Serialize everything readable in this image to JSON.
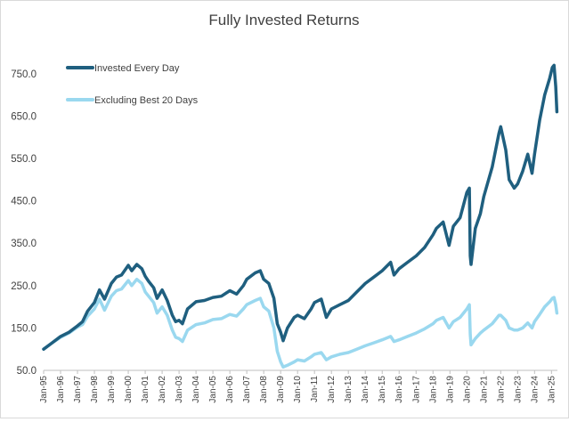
{
  "chart_data": {
    "type": "line",
    "title": "Fully Invested Returns",
    "xlabel": "",
    "ylabel": "",
    "ylim": [
      50,
      800
    ],
    "y_ticks": [
      50,
      150,
      250,
      350,
      450,
      550,
      650,
      750
    ],
    "y_tick_labels": [
      "50.0",
      "150.0",
      "250.0",
      "350.0",
      "450.0",
      "550.0",
      "650.0",
      "750.0"
    ],
    "x_ticks": [
      "Jan-95",
      "Jan-96",
      "Jan-97",
      "Jan-98",
      "Jan-99",
      "Jan-00",
      "Jan-01",
      "Jan-02",
      "Jan-03",
      "Jan-04",
      "Jan-05",
      "Jan-06",
      "Jan-07",
      "Jan-08",
      "Jan-09",
      "Jan-10",
      "Jan-11",
      "Jan-12",
      "Jan-13",
      "Jan-14",
      "Jan-15",
      "Jan-16",
      "Jan-17",
      "Jan-18",
      "Jan-19",
      "Jan-20",
      "Jan-21",
      "Jan-22",
      "Jan-23",
      "Jan-24",
      "Jan-25"
    ],
    "x_range": [
      1995.0,
      2025.35
    ],
    "grid": false,
    "legend_position": "top-left",
    "series": [
      {
        "name": "Invested Every Day",
        "color": "#1f5f7f",
        "points": [
          [
            1995.0,
            100
          ],
          [
            1995.5,
            115
          ],
          [
            1996.0,
            130
          ],
          [
            1996.5,
            140
          ],
          [
            1997.0,
            155
          ],
          [
            1997.3,
            165
          ],
          [
            1997.6,
            190
          ],
          [
            1998.0,
            210
          ],
          [
            1998.3,
            240
          ],
          [
            1998.6,
            218
          ],
          [
            1999.0,
            255
          ],
          [
            1999.3,
            270
          ],
          [
            1999.6,
            275
          ],
          [
            2000.0,
            298
          ],
          [
            2000.2,
            285
          ],
          [
            2000.5,
            300
          ],
          [
            2000.8,
            290
          ],
          [
            2001.0,
            272
          ],
          [
            2001.2,
            260
          ],
          [
            2001.5,
            245
          ],
          [
            2001.7,
            220
          ],
          [
            2002.0,
            240
          ],
          [
            2002.3,
            215
          ],
          [
            2002.6,
            180
          ],
          [
            2002.8,
            165
          ],
          [
            2003.0,
            168
          ],
          [
            2003.2,
            160
          ],
          [
            2003.5,
            195
          ],
          [
            2004.0,
            212
          ],
          [
            2004.5,
            215
          ],
          [
            2005.0,
            222
          ],
          [
            2005.5,
            225
          ],
          [
            2006.0,
            238
          ],
          [
            2006.4,
            230
          ],
          [
            2006.8,
            250
          ],
          [
            2007.0,
            265
          ],
          [
            2007.5,
            280
          ],
          [
            2007.8,
            285
          ],
          [
            2008.0,
            265
          ],
          [
            2008.3,
            255
          ],
          [
            2008.6,
            220
          ],
          [
            2008.8,
            160
          ],
          [
            2009.0,
            140
          ],
          [
            2009.15,
            120
          ],
          [
            2009.4,
            150
          ],
          [
            2009.8,
            175
          ],
          [
            2010.0,
            180
          ],
          [
            2010.4,
            172
          ],
          [
            2010.8,
            195
          ],
          [
            2011.0,
            210
          ],
          [
            2011.4,
            218
          ],
          [
            2011.7,
            175
          ],
          [
            2012.0,
            195
          ],
          [
            2012.5,
            205
          ],
          [
            2013.0,
            215
          ],
          [
            2013.5,
            235
          ],
          [
            2014.0,
            255
          ],
          [
            2014.5,
            270
          ],
          [
            2015.0,
            285
          ],
          [
            2015.5,
            305
          ],
          [
            2015.7,
            275
          ],
          [
            2016.0,
            290
          ],
          [
            2016.5,
            305
          ],
          [
            2017.0,
            320
          ],
          [
            2017.5,
            340
          ],
          [
            2018.0,
            370
          ],
          [
            2018.2,
            385
          ],
          [
            2018.6,
            400
          ],
          [
            2018.95,
            345
          ],
          [
            2019.2,
            390
          ],
          [
            2019.6,
            410
          ],
          [
            2020.0,
            470
          ],
          [
            2020.15,
            480
          ],
          [
            2020.2,
            320
          ],
          [
            2020.25,
            300
          ],
          [
            2020.5,
            385
          ],
          [
            2020.8,
            420
          ],
          [
            2021.0,
            460
          ],
          [
            2021.5,
            530
          ],
          [
            2021.9,
            610
          ],
          [
            2022.0,
            625
          ],
          [
            2022.3,
            570
          ],
          [
            2022.5,
            500
          ],
          [
            2022.8,
            480
          ],
          [
            2023.0,
            490
          ],
          [
            2023.3,
            520
          ],
          [
            2023.6,
            560
          ],
          [
            2023.85,
            515
          ],
          [
            2024.0,
            560
          ],
          [
            2024.3,
            640
          ],
          [
            2024.6,
            700
          ],
          [
            2024.9,
            740
          ],
          [
            2025.05,
            765
          ],
          [
            2025.15,
            770
          ],
          [
            2025.25,
            720
          ],
          [
            2025.32,
            660
          ]
        ]
      },
      {
        "name": "Excluding Best 20 Days",
        "color": "#9ad8ef",
        "points": [
          [
            1995.0,
            100
          ],
          [
            1995.5,
            115
          ],
          [
            1996.0,
            128
          ],
          [
            1996.5,
            138
          ],
          [
            1997.0,
            152
          ],
          [
            1997.3,
            158
          ],
          [
            1997.6,
            178
          ],
          [
            1998.0,
            195
          ],
          [
            1998.3,
            218
          ],
          [
            1998.6,
            192
          ],
          [
            1999.0,
            225
          ],
          [
            1999.3,
            238
          ],
          [
            1999.6,
            242
          ],
          [
            2000.0,
            262
          ],
          [
            2000.2,
            250
          ],
          [
            2000.5,
            265
          ],
          [
            2000.8,
            255
          ],
          [
            2001.0,
            235
          ],
          [
            2001.2,
            225
          ],
          [
            2001.5,
            210
          ],
          [
            2001.7,
            185
          ],
          [
            2002.0,
            200
          ],
          [
            2002.3,
            180
          ],
          [
            2002.6,
            145
          ],
          [
            2002.8,
            128
          ],
          [
            2003.0,
            125
          ],
          [
            2003.2,
            118
          ],
          [
            2003.5,
            145
          ],
          [
            2004.0,
            158
          ],
          [
            2004.5,
            162
          ],
          [
            2005.0,
            170
          ],
          [
            2005.5,
            172
          ],
          [
            2006.0,
            182
          ],
          [
            2006.4,
            178
          ],
          [
            2006.8,
            195
          ],
          [
            2007.0,
            205
          ],
          [
            2007.5,
            215
          ],
          [
            2007.8,
            220
          ],
          [
            2008.0,
            200
          ],
          [
            2008.3,
            190
          ],
          [
            2008.6,
            150
          ],
          [
            2008.8,
            95
          ],
          [
            2009.0,
            70
          ],
          [
            2009.15,
            58
          ],
          [
            2009.4,
            62
          ],
          [
            2009.8,
            70
          ],
          [
            2010.0,
            75
          ],
          [
            2010.4,
            72
          ],
          [
            2010.8,
            82
          ],
          [
            2011.0,
            88
          ],
          [
            2011.4,
            92
          ],
          [
            2011.7,
            75
          ],
          [
            2012.0,
            82
          ],
          [
            2012.5,
            88
          ],
          [
            2013.0,
            92
          ],
          [
            2013.5,
            100
          ],
          [
            2014.0,
            108
          ],
          [
            2014.5,
            115
          ],
          [
            2015.0,
            122
          ],
          [
            2015.5,
            130
          ],
          [
            2015.7,
            118
          ],
          [
            2016.0,
            122
          ],
          [
            2016.5,
            130
          ],
          [
            2017.0,
            138
          ],
          [
            2017.5,
            148
          ],
          [
            2018.0,
            160
          ],
          [
            2018.2,
            168
          ],
          [
            2018.6,
            175
          ],
          [
            2018.95,
            150
          ],
          [
            2019.2,
            165
          ],
          [
            2019.6,
            175
          ],
          [
            2020.0,
            195
          ],
          [
            2020.15,
            205
          ],
          [
            2020.2,
            135
          ],
          [
            2020.25,
            110
          ],
          [
            2020.5,
            125
          ],
          [
            2020.8,
            138
          ],
          [
            2021.0,
            145
          ],
          [
            2021.5,
            160
          ],
          [
            2021.9,
            180
          ],
          [
            2022.0,
            180
          ],
          [
            2022.3,
            168
          ],
          [
            2022.5,
            150
          ],
          [
            2022.8,
            145
          ],
          [
            2023.0,
            145
          ],
          [
            2023.3,
            150
          ],
          [
            2023.6,
            162
          ],
          [
            2023.85,
            150
          ],
          [
            2024.0,
            165
          ],
          [
            2024.3,
            182
          ],
          [
            2024.6,
            200
          ],
          [
            2024.9,
            212
          ],
          [
            2025.05,
            220
          ],
          [
            2025.15,
            222
          ],
          [
            2025.25,
            205
          ],
          [
            2025.32,
            185
          ]
        ]
      }
    ]
  }
}
